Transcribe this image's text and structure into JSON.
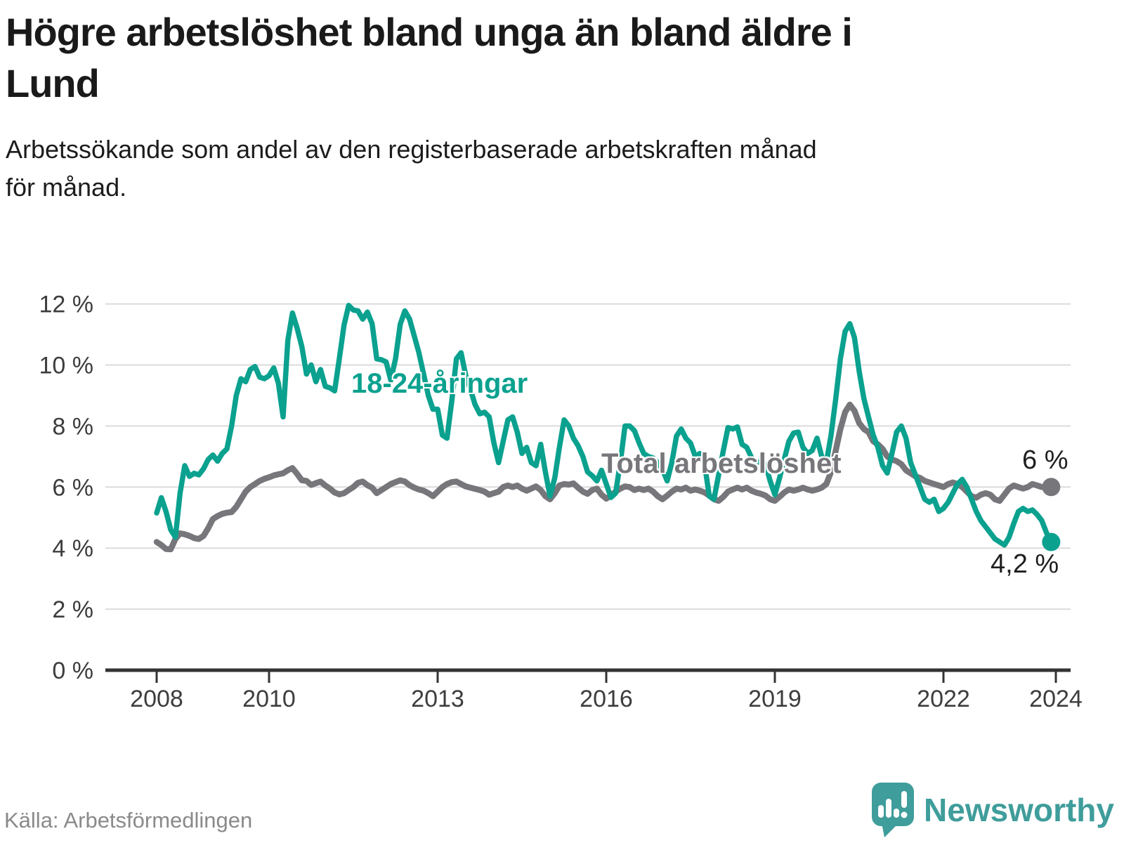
{
  "header": {
    "title_line1": "Högre arbetslöshet bland unga än bland äldre i",
    "title_line2": "Lund",
    "subtitle_line1": "Arbetssökande som andel av den registerbaserade arbetskraften månad",
    "subtitle_line2": "för månad."
  },
  "annotations": {
    "young_series_label": "18-24-åringar",
    "total_series_label": "Total arbetslöshet",
    "total_end_value_label": "6 %",
    "young_end_value_label": "4,2 %"
  },
  "footer": {
    "source": "Källa: Arbetsförmedlingen",
    "brand_name": "Newsworthy"
  },
  "colors": {
    "young_teal": "#0ba18f",
    "total_gray": "#76767b",
    "grid": "#dbdbdb",
    "axis": "#333333",
    "tick_text": "#3d3d3d",
    "title_text": "#1a1a1a",
    "muted_text": "#8a8a8a",
    "brand_teal": "#3f9d9b"
  },
  "chart_data": {
    "type": "line",
    "title": "Högre arbetslöshet bland unga än bland äldre i Lund",
    "subtitle": "Arbetssökande som andel av den registerbaserade arbetskraften månad för månad.",
    "unit": "%",
    "grid": "horizontal",
    "x_start_year": 2008,
    "x_interval_months": 1,
    "x_end": "2023-12",
    "xlim": [
      2007.1,
      2024.35
    ],
    "ylim": [
      0,
      12.4
    ],
    "x_ticks": [
      2008,
      2010,
      2013,
      2016,
      2019,
      2022,
      2024
    ],
    "x_tick_labels": [
      "2008",
      "2010",
      "2013",
      "2016",
      "2019",
      "2022",
      "2024"
    ],
    "y_ticks": [
      0,
      2,
      4,
      6,
      8,
      10,
      12
    ],
    "y_tick_labels": [
      "0 %",
      "2 %",
      "4 %",
      "6 %",
      "8 %",
      "10 %",
      "12 %"
    ],
    "legend_position": "inline-labels",
    "series": [
      {
        "name": "Total arbetslöshet",
        "color": "#76767b",
        "line_width": 8.5,
        "end_label": "6 %",
        "end_value": 6.0,
        "values": [
          4.2,
          4.1,
          3.97,
          3.96,
          4.3,
          4.48,
          4.45,
          4.4,
          4.33,
          4.3,
          4.4,
          4.65,
          4.95,
          5.05,
          5.12,
          5.16,
          5.18,
          5.35,
          5.6,
          5.85,
          6.0,
          6.1,
          6.2,
          6.27,
          6.32,
          6.38,
          6.42,
          6.45,
          6.55,
          6.62,
          6.43,
          6.22,
          6.2,
          6.07,
          6.13,
          6.18,
          6.05,
          5.95,
          5.82,
          5.76,
          5.8,
          5.9,
          6.0,
          6.14,
          6.18,
          6.06,
          5.98,
          5.8,
          5.9,
          6.0,
          6.1,
          6.16,
          6.22,
          6.18,
          6.06,
          5.98,
          5.92,
          5.88,
          5.8,
          5.7,
          5.85,
          6.0,
          6.1,
          6.16,
          6.18,
          6.1,
          6.02,
          5.98,
          5.94,
          5.9,
          5.85,
          5.75,
          5.8,
          5.85,
          6.0,
          6.05,
          6.0,
          6.05,
          5.95,
          5.88,
          5.95,
          6.02,
          5.9,
          5.7,
          5.6,
          5.8,
          6.05,
          6.1,
          6.08,
          6.12,
          5.98,
          5.85,
          5.78,
          5.9,
          5.95,
          5.75,
          5.62,
          5.72,
          5.85,
          5.95,
          6.02,
          6.0,
          5.9,
          5.95,
          5.9,
          5.95,
          5.85,
          5.7,
          5.6,
          5.72,
          5.85,
          5.95,
          5.92,
          5.98,
          5.88,
          5.92,
          5.88,
          5.82,
          5.72,
          5.6,
          5.55,
          5.68,
          5.85,
          5.92,
          5.98,
          5.92,
          5.98,
          5.88,
          5.82,
          5.78,
          5.72,
          5.6,
          5.55,
          5.68,
          5.82,
          5.92,
          5.88,
          5.92,
          5.98,
          5.92,
          5.88,
          5.92,
          5.98,
          6.1,
          6.5,
          7.2,
          7.9,
          8.45,
          8.7,
          8.5,
          8.1,
          7.9,
          7.8,
          7.5,
          7.4,
          7.25,
          7.0,
          6.9,
          6.85,
          6.75,
          6.55,
          6.45,
          6.35,
          6.3,
          6.2,
          6.15,
          6.1,
          6.05,
          6.0,
          6.1,
          6.15,
          6.1,
          6.0,
          5.85,
          5.7,
          5.65,
          5.75,
          5.8,
          5.75,
          5.6,
          5.55,
          5.75,
          5.95,
          6.05,
          6.0,
          5.95,
          6.0,
          6.1,
          6.05,
          6.0,
          6.0,
          6.0
        ]
      },
      {
        "name": "18-24-åringar",
        "color": "#0ba18f",
        "line_width": 7.5,
        "end_label": "4,2 %",
        "end_value": 4.2,
        "values": [
          5.15,
          5.65,
          5.2,
          4.6,
          4.36,
          5.8,
          6.7,
          6.35,
          6.45,
          6.4,
          6.6,
          6.9,
          7.05,
          6.85,
          7.1,
          7.25,
          8.0,
          9.0,
          9.55,
          9.45,
          9.85,
          9.95,
          9.6,
          9.55,
          9.65,
          9.9,
          9.4,
          8.3,
          10.8,
          11.7,
          11.2,
          10.6,
          9.7,
          10.0,
          9.45,
          9.85,
          9.3,
          9.25,
          9.15,
          10.2,
          11.3,
          11.95,
          11.8,
          11.77,
          11.5,
          11.73,
          11.35,
          10.2,
          10.17,
          10.1,
          9.5,
          10.2,
          11.33,
          11.77,
          11.5,
          10.95,
          10.4,
          9.7,
          9.0,
          8.55,
          8.55,
          7.7,
          7.6,
          8.8,
          10.2,
          10.4,
          9.65,
          9.2,
          8.7,
          8.4,
          8.45,
          8.3,
          7.45,
          6.8,
          7.5,
          8.2,
          8.3,
          7.8,
          7.1,
          7.3,
          6.8,
          6.7,
          7.4,
          6.5,
          5.7,
          6.3,
          7.3,
          8.2,
          8.0,
          7.6,
          7.35,
          7.0,
          6.5,
          6.37,
          6.2,
          6.55,
          6.1,
          5.66,
          5.8,
          6.8,
          8.0,
          8.0,
          7.85,
          7.45,
          7.1,
          7.0,
          6.95,
          6.8,
          6.58,
          6.2,
          6.8,
          7.67,
          7.9,
          7.6,
          7.44,
          7.0,
          7.1,
          6.74,
          5.7,
          5.6,
          6.4,
          7.2,
          7.95,
          7.9,
          7.97,
          7.4,
          7.3,
          6.97,
          6.85,
          6.8,
          6.74,
          6.2,
          5.75,
          6.3,
          6.9,
          7.5,
          7.77,
          7.8,
          7.3,
          7.1,
          7.2,
          7.6,
          7.0,
          6.8,
          7.7,
          8.9,
          10.2,
          11.1,
          11.35,
          10.9,
          9.8,
          8.9,
          8.3,
          7.7,
          7.3,
          6.7,
          6.46,
          7.1,
          7.8,
          8.0,
          7.6,
          6.8,
          6.4,
          6.0,
          5.6,
          5.5,
          5.6,
          5.2,
          5.3,
          5.5,
          5.8,
          6.1,
          6.25,
          6.0,
          5.6,
          5.2,
          4.9,
          4.7,
          4.5,
          4.3,
          4.2,
          4.1,
          4.35,
          4.8,
          5.2,
          5.3,
          5.2,
          5.25,
          5.1,
          4.9,
          4.5,
          4.2
        ]
      }
    ]
  }
}
